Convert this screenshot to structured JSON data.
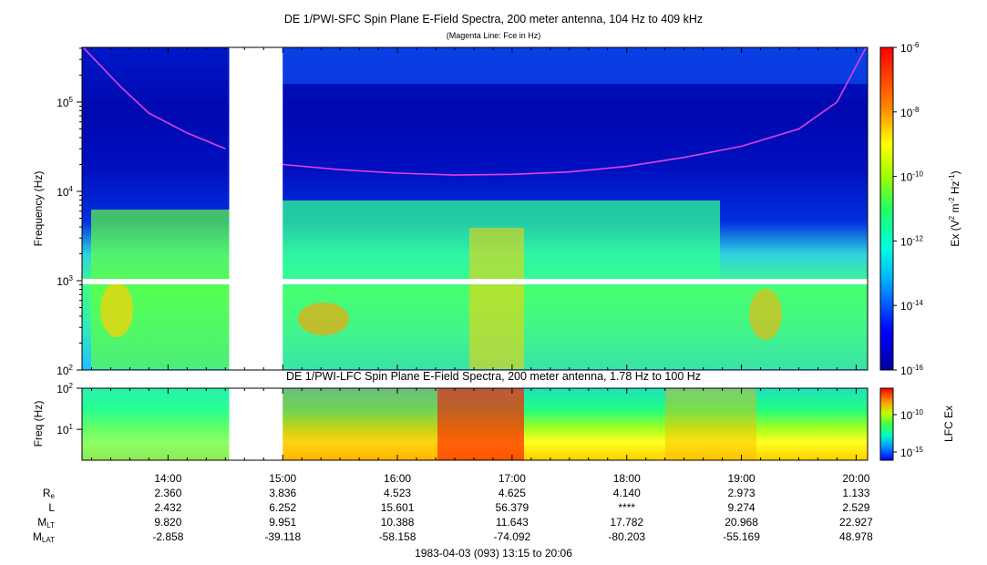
{
  "chart_data": [
    {
      "type": "heatmap",
      "title": "DE 1/PWI-SFC  Spin Plane E-Field Spectra, 200 meter antenna, 104 Hz to 409 kHz",
      "subtitle": "(Magenta Line: Fce in Hz)",
      "ylabel": "Frequency (Hz)",
      "yscale": "log",
      "ylim": [
        100,
        409000
      ],
      "yticks": [
        {
          "label": "10",
          "exp": "2"
        },
        {
          "label": "10",
          "exp": "3"
        },
        {
          "label": "10",
          "exp": "4"
        },
        {
          "label": "10",
          "exp": "5"
        }
      ],
      "colorbar": {
        "label": "Ex (V",
        "label_mid": "2",
        "label_m": " m",
        "label_m_exp": "-2",
        "label_hz": " Hz",
        "label_hz_exp": "-1",
        "label_close": ")",
        "scale": "log",
        "range": [
          1e-16,
          1e-06
        ],
        "ticks": [
          {
            "label": "10",
            "exp": "-6"
          },
          {
            "label": "10",
            "exp": "-8"
          },
          {
            "label": "10",
            "exp": "-10"
          },
          {
            "label": "10",
            "exp": "-12"
          },
          {
            "label": "10",
            "exp": "-14"
          },
          {
            "label": "10",
            "exp": "-16"
          }
        ]
      },
      "data_gap_utc": [
        "14:32",
        "15:00"
      ],
      "fce_line": {
        "color": "#e040e0",
        "segment1": [
          [
            "13:16",
            400000
          ],
          [
            "13:35",
            150000
          ],
          [
            "13:50",
            75000
          ],
          [
            "14:10",
            45000
          ],
          [
            "14:30",
            30000
          ]
        ],
        "segment2": [
          [
            "15:00",
            20000
          ],
          [
            "15:30",
            17500
          ],
          [
            "16:00",
            16000
          ],
          [
            "16:30",
            15200
          ],
          [
            "17:00",
            15500
          ],
          [
            "17:30",
            16500
          ],
          [
            "18:00",
            19000
          ],
          [
            "18:30",
            24000
          ],
          [
            "19:00",
            32000
          ],
          [
            "19:30",
            50000
          ],
          [
            "19:50",
            100000
          ],
          [
            "20:05",
            400000
          ]
        ]
      }
    },
    {
      "type": "heatmap",
      "title": "DE 1/PWI-LFC  Spin Plane E-Field Spectra, 200 meter antenna, 1.78 Hz to 100 Hz",
      "ylabel": "Freq (Hz)",
      "yscale": "log",
      "ylim": [
        1.78,
        100
      ],
      "yticks": [
        {
          "label": "10",
          "exp": "1"
        },
        {
          "label": "10",
          "exp": "2"
        }
      ],
      "colorbar": {
        "label": "LFC Ex",
        "scale": "log",
        "ticks": [
          {
            "label": "10",
            "exp": "-10"
          },
          {
            "label": "10",
            "exp": "-15"
          }
        ]
      },
      "data_gap_utc": [
        "14:32",
        "15:00"
      ]
    }
  ],
  "x_axis": {
    "ticks": [
      "14:00",
      "15:00",
      "16:00",
      "17:00",
      "18:00",
      "19:00",
      "20:00"
    ],
    "range_utc": [
      "13:15",
      "20:06"
    ]
  },
  "ephemeris": {
    "rows": [
      {
        "name": "R",
        "sub": "e",
        "values": [
          "2.360",
          "3.836",
          "4.523",
          "4.625",
          "4.140",
          "2.973",
          "1.133"
        ]
      },
      {
        "name": "L",
        "sub": "",
        "values": [
          "2.432",
          "6.252",
          "15.601",
          "56.379",
          "****",
          "9.274",
          "2.529"
        ]
      },
      {
        "name": "M",
        "sub": "LT",
        "values": [
          "9.820",
          "9.951",
          "10.388",
          "11.643",
          "17.782",
          "20.968",
          "22.927"
        ]
      },
      {
        "name": "M",
        "sub": "LAT",
        "values": [
          "-2.858",
          "-39.118",
          "-58.158",
          "-74.092",
          "-80.203",
          "-55.169",
          "48.978"
        ]
      }
    ]
  },
  "footer": "1983-04-03 (093) 13:15 to 20:06",
  "colors": {
    "fce": "#e040e0",
    "background": "#ffffff"
  }
}
